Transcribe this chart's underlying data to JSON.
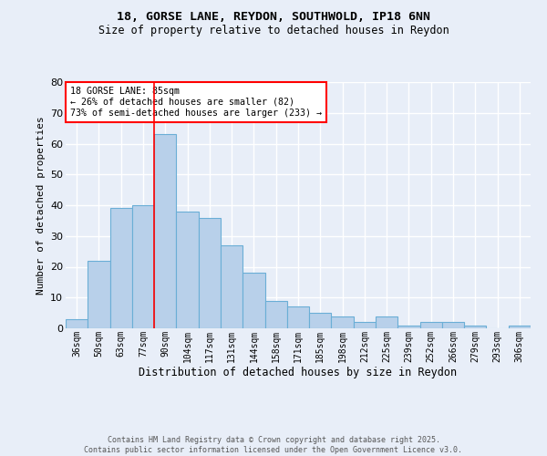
{
  "title1": "18, GORSE LANE, REYDON, SOUTHWOLD, IP18 6NN",
  "title2": "Size of property relative to detached houses in Reydon",
  "xlabel": "Distribution of detached houses by size in Reydon",
  "ylabel": "Number of detached properties",
  "categories": [
    "36sqm",
    "50sqm",
    "63sqm",
    "77sqm",
    "90sqm",
    "104sqm",
    "117sqm",
    "131sqm",
    "144sqm",
    "158sqm",
    "171sqm",
    "185sqm",
    "198sqm",
    "212sqm",
    "225sqm",
    "239sqm",
    "252sqm",
    "266sqm",
    "279sqm",
    "293sqm",
    "306sqm"
  ],
  "values": [
    3,
    22,
    39,
    40,
    63,
    38,
    36,
    27,
    18,
    9,
    7,
    5,
    4,
    2,
    4,
    1,
    2,
    2,
    1,
    0,
    1
  ],
  "bar_color": "#b8d0ea",
  "bar_edge_color": "#6aaed6",
  "vline_color": "red",
  "vline_x": 3.5,
  "annotation_text": "18 GORSE LANE: 85sqm\n← 26% of detached houses are smaller (82)\n73% of semi-detached houses are larger (233) →",
  "annotation_box_color": "white",
  "annotation_box_edge": "red",
  "ylim": [
    0,
    80
  ],
  "yticks": [
    0,
    10,
    20,
    30,
    40,
    50,
    60,
    70,
    80
  ],
  "footnote": "Contains HM Land Registry data © Crown copyright and database right 2025.\nContains public sector information licensed under the Open Government Licence v3.0.",
  "bg_color": "#e8eef8",
  "grid_color": "#ffffff"
}
